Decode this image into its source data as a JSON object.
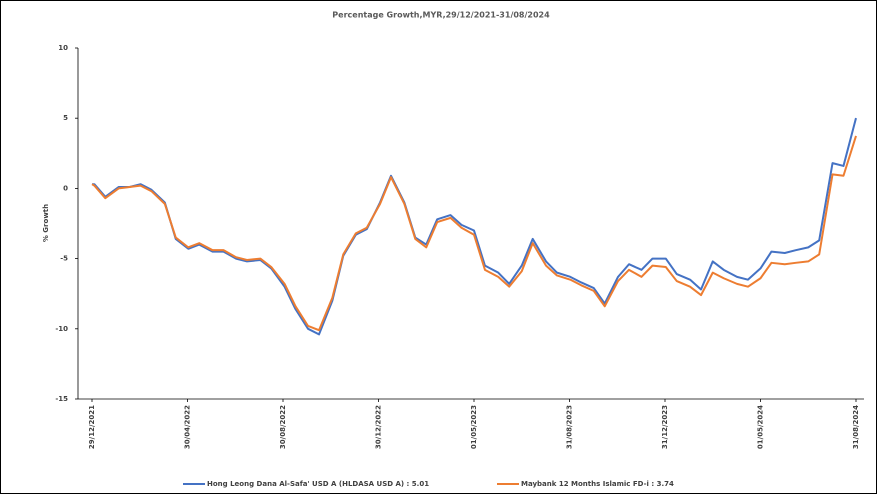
{
  "chart_data": {
    "type": "line",
    "title": "Percentage Growth,MYR,29/12/2021-31/08/2024",
    "y_label": "% Growth",
    "x": [
      "29/12/2021",
      "01/01/2022",
      "15/01/2022",
      "01/02/2022",
      "15/02/2022",
      "01/03/2022",
      "15/03/2022",
      "01/04/2022",
      "15/04/2022",
      "01/05/2022",
      "15/05/2022",
      "01/06/2022",
      "15/06/2022",
      "01/07/2022",
      "15/07/2022",
      "01/08/2022",
      "15/08/2022",
      "01/09/2022",
      "15/09/2022",
      "01/10/2022",
      "15/10/2022",
      "01/11/2022",
      "15/11/2022",
      "01/12/2022",
      "15/12/2022",
      "01/01/2023",
      "15/01/2023",
      "01/02/2023",
      "15/02/2023",
      "01/03/2023",
      "15/03/2023",
      "01/04/2023",
      "15/04/2023",
      "01/05/2023",
      "15/05/2023",
      "01/06/2023",
      "15/06/2023",
      "01/07/2023",
      "15/07/2023",
      "01/08/2023",
      "15/08/2023",
      "01/09/2023",
      "15/09/2023",
      "01/10/2023",
      "15/10/2023",
      "01/11/2023",
      "15/11/2023",
      "01/12/2023",
      "15/12/2023",
      "01/01/2024",
      "15/01/2024",
      "01/02/2024",
      "15/02/2024",
      "01/03/2024",
      "15/03/2024",
      "01/04/2024",
      "15/04/2024",
      "01/05/2024",
      "15/05/2024",
      "01/06/2024",
      "15/06/2024",
      "01/07/2024",
      "15/07/2024",
      "01/08/2024",
      "15/08/2024",
      "31/08/2024"
    ],
    "series": [
      {
        "name": "Hong Leong Dana Al-Safa' USD A (HLDASA USD A) : 5.01",
        "color": "#4472c4",
        "values": [
          0.3,
          0.3,
          -0.6,
          0.1,
          0.1,
          0.3,
          -0.1,
          -1.0,
          -3.6,
          -4.3,
          -4.0,
          -4.5,
          -4.5,
          -5.0,
          -5.2,
          -5.1,
          -5.7,
          -7.0,
          -8.6,
          -10.0,
          -10.4,
          -8.0,
          -4.8,
          -3.3,
          -2.9,
          -1.0,
          0.9,
          -1.0,
          -3.5,
          -4.0,
          -2.2,
          -1.9,
          -2.6,
          -3.0,
          -5.5,
          -6.0,
          -6.8,
          -5.5,
          -3.6,
          -5.2,
          -6.0,
          -6.3,
          -6.7,
          -7.1,
          -8.2,
          -6.3,
          -5.4,
          -5.8,
          -5.0,
          -5.0,
          -6.1,
          -6.5,
          -7.2,
          -5.2,
          -5.8,
          -6.3,
          -6.5,
          -5.7,
          -4.5,
          -4.6,
          -4.4,
          -4.2,
          -3.7,
          1.8,
          1.6,
          5.01
        ]
      },
      {
        "name": "Maybank 12 Months Islamic FD-i : 3.74",
        "color": "#ed7d31",
        "values": [
          0.3,
          0.2,
          -0.7,
          0.0,
          0.1,
          0.2,
          -0.2,
          -1.1,
          -3.5,
          -4.2,
          -3.9,
          -4.4,
          -4.4,
          -4.9,
          -5.1,
          -5.0,
          -5.6,
          -6.8,
          -8.4,
          -9.8,
          -10.1,
          -7.8,
          -4.7,
          -3.2,
          -2.8,
          -1.1,
          0.8,
          -1.1,
          -3.6,
          -4.2,
          -2.4,
          -2.1,
          -2.8,
          -3.3,
          -5.8,
          -6.3,
          -7.0,
          -5.9,
          -3.9,
          -5.5,
          -6.2,
          -6.5,
          -6.9,
          -7.3,
          -8.4,
          -6.6,
          -5.8,
          -6.3,
          -5.5,
          -5.6,
          -6.6,
          -7.0,
          -7.6,
          -6.0,
          -6.4,
          -6.8,
          -7.0,
          -6.4,
          -5.3,
          -5.4,
          -5.3,
          -5.2,
          -4.7,
          1.0,
          0.9,
          3.74
        ]
      }
    ],
    "xlim": [
      "29/12/2021",
      "31/08/2024"
    ],
    "xticks": [
      "29/12/2021",
      "30/04/2022",
      "30/08/2022",
      "30/12/2022",
      "01/05/2023",
      "31/08/2023",
      "31/12/2023",
      "01/05/2024",
      "31/08/2024"
    ],
    "ylim": [
      -15,
      10
    ],
    "yticks": [
      -15,
      -10,
      -5,
      0,
      5,
      10
    ],
    "legend": "bottom"
  }
}
